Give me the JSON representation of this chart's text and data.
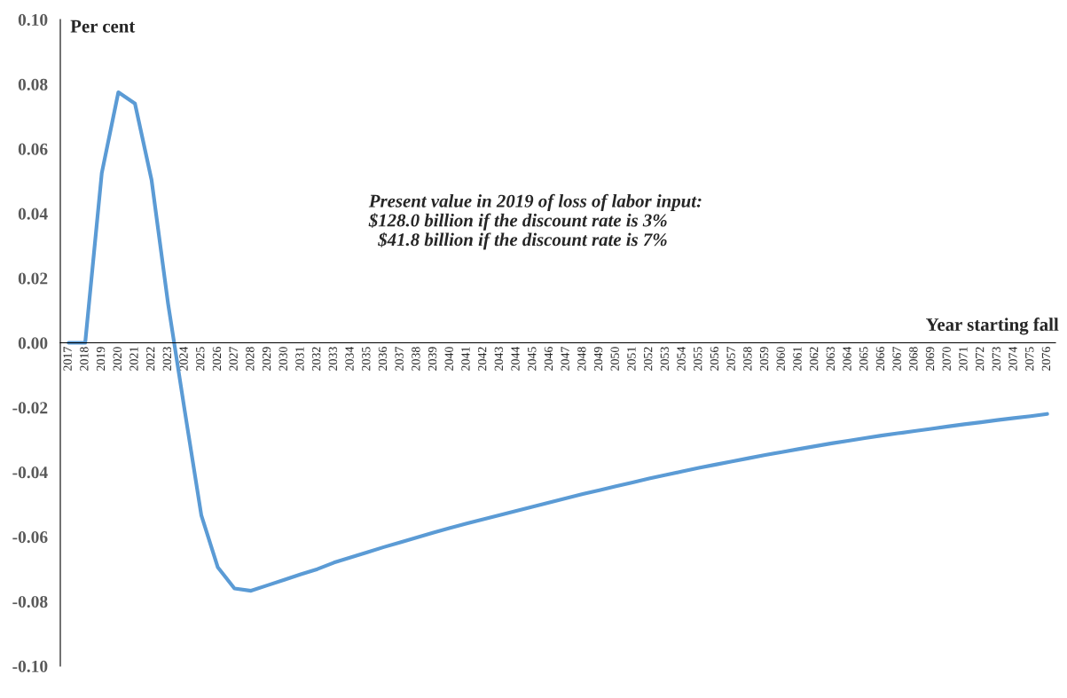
{
  "chart_data": {
    "type": "line",
    "ylabel": "Per cent",
    "xlabel": "Year starting fall",
    "annotations": [
      "Present value in 2019 of loss of labor input:\n$128.0 billion if the discount rate is 3%\n  $41.8 billion if the discount rate is 7%"
    ],
    "categories": [
      "2017",
      "2018",
      "2019",
      "2020",
      "2021",
      "2022",
      "2023",
      "2024",
      "2025",
      "2026",
      "2027",
      "2028",
      "2029",
      "2030",
      "2031",
      "2032",
      "2033",
      "2034",
      "2035",
      "2036",
      "2037",
      "2038",
      "2039",
      "2040",
      "2041",
      "2042",
      "2043",
      "2044",
      "2045",
      "2046",
      "2047",
      "2048",
      "2049",
      "2050",
      "2051",
      "2052",
      "2053",
      "2054",
      "2055",
      "2056",
      "2057",
      "2058",
      "2059",
      "2060",
      "2061",
      "2062",
      "2063",
      "2064",
      "2065",
      "2066",
      "2067",
      "2068",
      "2069",
      "2070",
      "2071",
      "2072",
      "2073",
      "2074",
      "2075",
      "2076"
    ],
    "series": [
      {
        "color": "#5b9bd5",
        "values": [
          0,
          0,
          0.0525,
          0.0775,
          0.074,
          0.0504,
          0.012,
          -0.021,
          -0.0533,
          -0.0695,
          -0.076,
          -0.0767,
          -0.075,
          -0.0733,
          -0.0716,
          -0.07,
          -0.068,
          -0.0664,
          -0.0648,
          -0.0632,
          -0.0617,
          -0.0602,
          -0.0587,
          -0.0573,
          -0.0559,
          -0.0546,
          -0.0533,
          -0.052,
          -0.0507,
          -0.0494,
          -0.0481,
          -0.0468,
          -0.0456,
          -0.0444,
          -0.0432,
          -0.042,
          -0.0409,
          -0.0398,
          -0.0387,
          -0.0377,
          -0.0367,
          -0.0357,
          -0.0347,
          -0.0338,
          -0.0329,
          -0.032,
          -0.0311,
          -0.0303,
          -0.0295,
          -0.0287,
          -0.028,
          -0.0273,
          -0.0266,
          -0.0259,
          -0.0252,
          -0.0246,
          -0.0239,
          -0.0233,
          -0.0227,
          -0.022
        ]
      }
    ],
    "ylim": [
      -0.1,
      0.1
    ],
    "yticks": [
      {
        "value": -0.1,
        "label": "-0.10"
      },
      {
        "value": -0.08,
        "label": "-0.08"
      },
      {
        "value": -0.06,
        "label": "-0.06"
      },
      {
        "value": -0.04,
        "label": "-0.04"
      },
      {
        "value": -0.02,
        "label": "-0.02"
      },
      {
        "value": 0,
        "label": "0.00"
      },
      {
        "value": 0.02,
        "label": "0.02"
      },
      {
        "value": 0.04,
        "label": "0.04"
      },
      {
        "value": 0.06,
        "label": "0.06"
      },
      {
        "value": 0.08,
        "label": "0.08"
      },
      {
        "value": 0.1,
        "label": "0.10"
      }
    ],
    "grid": false,
    "legend": false,
    "marker": "none",
    "line_style": "solid"
  }
}
